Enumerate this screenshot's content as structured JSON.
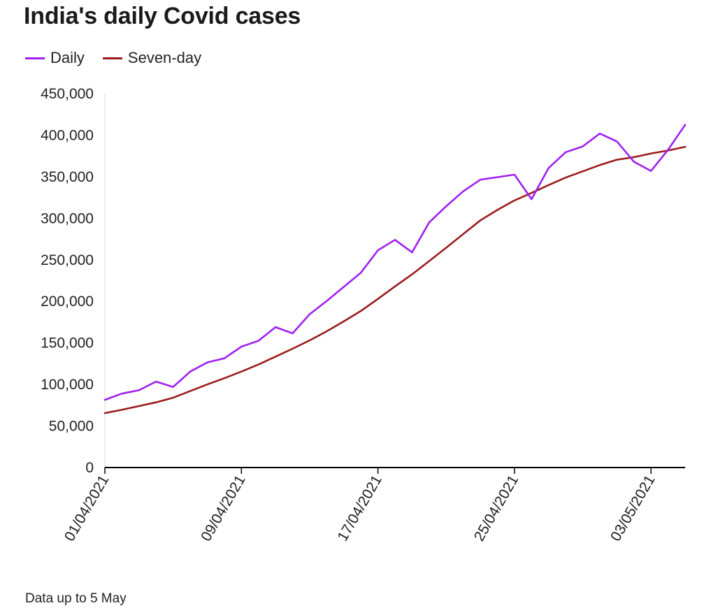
{
  "header": {
    "title": "India's daily Covid cases"
  },
  "footer": {
    "note": "Data up to 5 May"
  },
  "colors": {
    "daily": "#a020f0",
    "seven_day": "#9b1b1b",
    "axis": "#000000",
    "text": "#222222"
  },
  "chart_data": {
    "type": "line",
    "title": "India's daily Covid cases",
    "xlabel": "",
    "ylabel": "",
    "ylim": [
      0,
      450000
    ],
    "yticks": [
      0,
      50000,
      100000,
      150000,
      200000,
      250000,
      300000,
      350000,
      400000,
      450000
    ],
    "ytick_labels": [
      "0",
      "50,000",
      "100,000",
      "150,000",
      "200,000",
      "250,000",
      "300,000",
      "350,000",
      "400,000",
      "450,000"
    ],
    "x": [
      "01/04/2021",
      "02/04/2021",
      "03/04/2021",
      "04/04/2021",
      "05/04/2021",
      "06/04/2021",
      "07/04/2021",
      "08/04/2021",
      "09/04/2021",
      "10/04/2021",
      "11/04/2021",
      "12/04/2021",
      "13/04/2021",
      "14/04/2021",
      "15/04/2021",
      "16/04/2021",
      "17/04/2021",
      "18/04/2021",
      "19/04/2021",
      "20/04/2021",
      "21/04/2021",
      "22/04/2021",
      "23/04/2021",
      "24/04/2021",
      "25/04/2021",
      "26/04/2021",
      "27/04/2021",
      "28/04/2021",
      "29/04/2021",
      "30/04/2021",
      "01/05/2021",
      "02/05/2021",
      "03/05/2021",
      "04/05/2021",
      "05/05/2021"
    ],
    "xtick_labels": [
      "01/04/2021",
      "09/04/2021",
      "17/04/2021",
      "25/04/2021",
      "03/05/2021"
    ],
    "grid": false,
    "legend_position": "top-left",
    "series": [
      {
        "name": "Daily",
        "color": "#a020f0",
        "values": [
          81500,
          89000,
          93000,
          103500,
          97000,
          115500,
          126500,
          131500,
          145500,
          152500,
          169000,
          161500,
          184500,
          200500,
          217500,
          234500,
          261500,
          274000,
          259000,
          295000,
          314500,
          332500,
          346500,
          349500,
          352500,
          323000,
          360500,
          379500,
          386500,
          402000,
          392500,
          368000,
          357000,
          382500,
          412500
        ]
      },
      {
        "name": "Seven-day",
        "color": "#9b1b1b",
        "values": [
          65500,
          69500,
          74000,
          78500,
          84000,
          92000,
          100000,
          107500,
          115500,
          124000,
          133500,
          143000,
          153000,
          164000,
          176000,
          188500,
          203000,
          218000,
          232500,
          248500,
          264500,
          281000,
          297500,
          310000,
          321500,
          330500,
          340000,
          349000,
          356500,
          364000,
          370500,
          373500,
          378000,
          381500,
          386000
        ]
      }
    ]
  }
}
